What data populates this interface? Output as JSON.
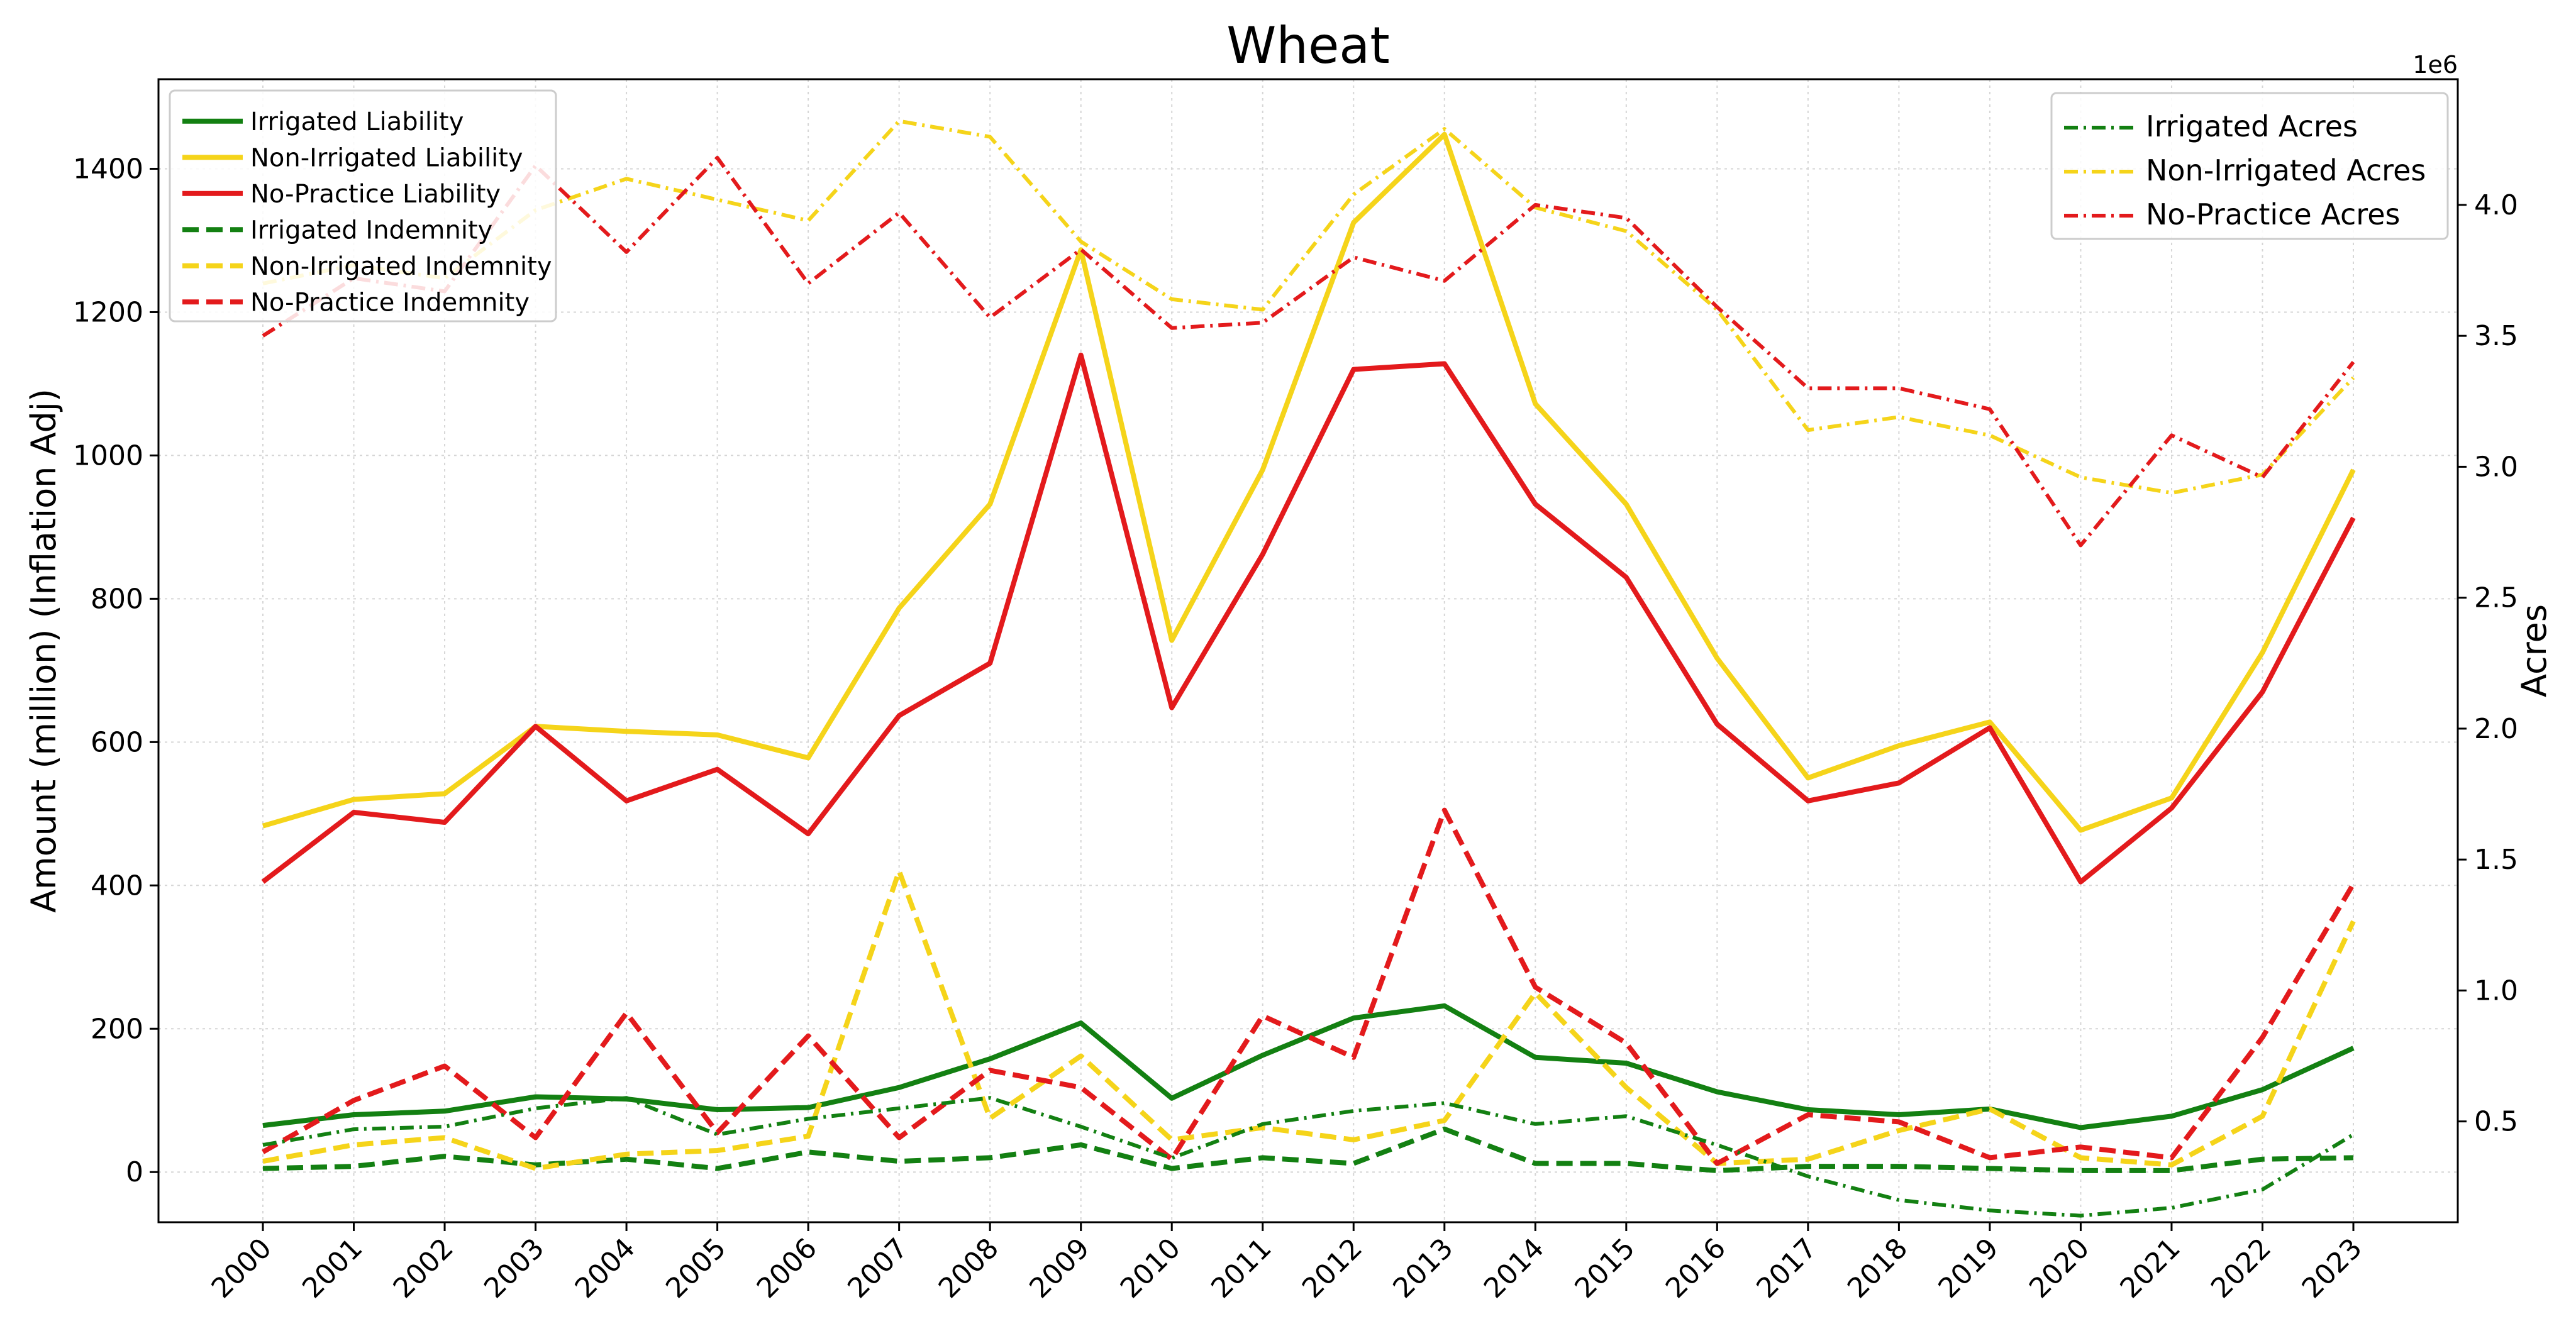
{
  "chart_data": {
    "type": "line",
    "title": "Wheat",
    "ylabel": "Amount (million) (Inflation Adj)",
    "y2label": "Acres",
    "y2_offset_text": "1e6",
    "categories": [
      "2000",
      "2001",
      "2002",
      "2003",
      "2004",
      "2005",
      "2006",
      "2007",
      "2008",
      "2009",
      "2010",
      "2011",
      "2012",
      "2013",
      "2014",
      "2015",
      "2016",
      "2017",
      "2018",
      "2019",
      "2020",
      "2021",
      "2022",
      "2023"
    ],
    "ylim": [
      -70,
      1525
    ],
    "y_ticks": [
      "0",
      "200",
      "400",
      "600",
      "800",
      "1000",
      "1200",
      "1400"
    ],
    "y2lim": [
      0.115,
      4.48
    ],
    "y2_ticks": [
      "0.5",
      "1.0",
      "1.5",
      "2.0",
      "2.5",
      "3.0",
      "3.5",
      "4.0"
    ],
    "grid": true,
    "legend_left_placement": "upper-left",
    "legend_right_placement": "upper-right",
    "series": [
      {
        "name": "Irrigated Liability",
        "axis": "left",
        "style": "solid",
        "color": "#138012",
        "values": [
          65,
          80,
          85,
          105,
          102,
          87,
          90,
          118,
          158,
          208,
          103,
          163,
          215,
          232,
          160,
          152,
          112,
          87,
          80,
          88,
          62,
          78,
          115,
          173
        ]
      },
      {
        "name": "Non-Irrigated Liability",
        "axis": "left",
        "style": "solid",
        "color": "#f5d41a",
        "values": [
          483,
          520,
          528,
          622,
          615,
          610,
          578,
          787,
          932,
          1287,
          742,
          980,
          1325,
          1448,
          1072,
          932,
          717,
          550,
          595,
          628,
          477,
          522,
          725,
          980
        ]
      },
      {
        "name": "No-Practice Liability",
        "axis": "left",
        "style": "solid",
        "color": "#e31a1c",
        "values": [
          405,
          502,
          488,
          622,
          518,
          562,
          472,
          637,
          710,
          1140,
          648,
          862,
          1120,
          1128,
          932,
          830,
          625,
          518,
          543,
          620,
          405,
          508,
          670,
          913
        ]
      },
      {
        "name": "Irrigated Indemnity",
        "axis": "left",
        "style": "dashed",
        "color": "#138012",
        "values": [
          5,
          8,
          22,
          10,
          18,
          5,
          28,
          15,
          20,
          38,
          5,
          20,
          12,
          60,
          12,
          12,
          2,
          8,
          8,
          5,
          2,
          2,
          18,
          20
        ]
      },
      {
        "name": "Non-Irrigated Indemnity",
        "axis": "left",
        "style": "dashed",
        "color": "#f5d41a",
        "values": [
          15,
          38,
          48,
          5,
          25,
          30,
          50,
          420,
          75,
          162,
          45,
          62,
          45,
          72,
          250,
          118,
          12,
          18,
          58,
          88,
          20,
          10,
          78,
          350
        ]
      },
      {
        "name": "No-Practice Indemnity",
        "axis": "left",
        "style": "dashed",
        "color": "#e31a1c",
        "values": [
          28,
          100,
          148,
          48,
          222,
          55,
          190,
          48,
          142,
          118,
          18,
          218,
          160,
          505,
          258,
          180,
          12,
          80,
          70,
          20,
          35,
          20,
          188,
          402
        ]
      },
      {
        "name": "Irrigated Acres",
        "axis": "right",
        "style": "dashdot",
        "color": "#138012",
        "values": [
          0.41,
          0.47,
          0.48,
          0.55,
          0.59,
          0.45,
          0.51,
          0.55,
          0.59,
          0.48,
          0.36,
          0.49,
          0.54,
          0.57,
          0.49,
          0.52,
          0.41,
          0.29,
          0.2,
          0.16,
          0.14,
          0.17,
          0.24,
          0.45
        ]
      },
      {
        "name": "Non-Irrigated Acres",
        "axis": "right",
        "style": "dashdot",
        "color": "#f5d41a",
        "values": [
          3.7,
          3.77,
          3.72,
          3.98,
          4.1,
          4.02,
          3.94,
          4.32,
          4.26,
          3.86,
          3.64,
          3.6,
          4.04,
          4.29,
          3.99,
          3.9,
          3.6,
          3.14,
          3.19,
          3.12,
          2.96,
          2.9,
          2.97,
          3.34
        ]
      },
      {
        "name": "No-Practice Acres",
        "axis": "right",
        "style": "dashdot",
        "color": "#e31a1c",
        "values": [
          3.5,
          3.72,
          3.67,
          4.15,
          3.82,
          4.18,
          3.7,
          3.97,
          3.57,
          3.83,
          3.53,
          3.55,
          3.8,
          3.71,
          4.0,
          3.95,
          3.61,
          3.3,
          3.3,
          3.22,
          2.7,
          3.12,
          2.96,
          3.4
        ]
      }
    ]
  }
}
